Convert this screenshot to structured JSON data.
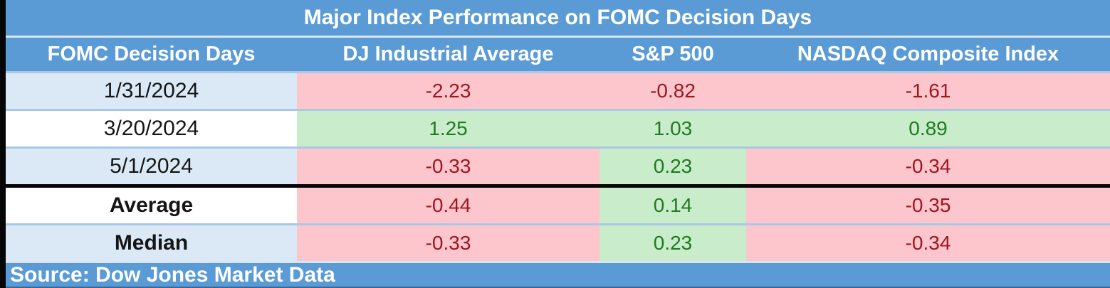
{
  "title": "Major Index Performance on FOMC Decision Days",
  "header": {
    "columns": [
      "FOMC Decision Days",
      "DJ Industrial Average",
      "S&P 500",
      "NASDAQ Composite Index"
    ]
  },
  "rows": [
    {
      "label": "1/31/2024",
      "values": [
        "-2.23",
        "-0.82",
        "-1.61"
      ]
    },
    {
      "label": "3/20/2024",
      "values": [
        "1.25",
        "1.03",
        "0.89"
      ]
    },
    {
      "label": "5/1/2024",
      "values": [
        "-0.33",
        "0.23",
        "-0.34"
      ]
    },
    {
      "label": "Average",
      "values": [
        "-0.44",
        "0.14",
        "-0.35"
      ]
    },
    {
      "label": "Median",
      "values": [
        "-0.33",
        "0.23",
        "-0.34"
      ]
    }
  ],
  "footer": {
    "source": "Source: Dow Jones Market Data"
  },
  "colors": {
    "header_blue": "#5b9bd5",
    "row_label_blue": "#dbe9f7",
    "negative_bg": "#fdc6cd",
    "positive_bg": "#c9ecca",
    "negative_text": "#9e1620",
    "positive_text": "#1f7a21",
    "title_text": "#ffffff",
    "thick_divider": "#060606"
  },
  "chart_data": {
    "type": "table",
    "title": "Major Index Performance on FOMC Decision Days",
    "columns": [
      "FOMC Decision Days",
      "DJ Industrial Average",
      "S&P 500",
      "NASDAQ Composite Index"
    ],
    "rows": [
      [
        "1/31/2024",
        -2.23,
        -0.82,
        -1.61
      ],
      [
        "3/20/2024",
        1.25,
        1.03,
        0.89
      ],
      [
        "5/1/2024",
        -0.33,
        0.23,
        -0.34
      ],
      [
        "Average",
        -0.44,
        0.14,
        -0.35
      ],
      [
        "Median",
        -0.33,
        0.23,
        -0.34
      ]
    ],
    "source": "Source: Dow Jones Market Data",
    "notes": "Values are percent changes; negative cells shaded pink with dark-red text, positive cells shaded green with dark-green text"
  }
}
